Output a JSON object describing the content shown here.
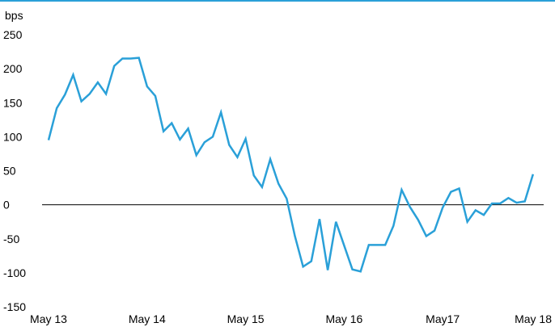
{
  "chart_data": {
    "type": "line",
    "title": "",
    "xlabel": "",
    "ylabel": "bps",
    "ylim": [
      -150,
      250
    ],
    "yticks": [
      250,
      200,
      150,
      100,
      50,
      0,
      -50,
      -100,
      -150
    ],
    "ytick_labels": [
      "250",
      "200",
      "150",
      "100",
      "50",
      "0",
      "-50",
      "-100",
      "-150"
    ],
    "xticks": [
      {
        "label": "May 13",
        "x": 0
      },
      {
        "label": "May 14",
        "x": 12
      },
      {
        "label": "May 15",
        "x": 24
      },
      {
        "label": "May 16",
        "x": 36
      },
      {
        "label": "May17",
        "x": 48
      },
      {
        "label": "May 18",
        "x": 60
      }
    ],
    "x_unit": "months since May 13",
    "grid": false,
    "zero_line": true,
    "colors": {
      "series": "#2aa0d8",
      "zero_line": "#000000",
      "top_rule": "#2aa0d8"
    },
    "series": [
      {
        "values": [
          95,
          142,
          162,
          191,
          152,
          163,
          180,
          163,
          204,
          215,
          215,
          216,
          174,
          160,
          108,
          120,
          96,
          112,
          73,
          92,
          100,
          136,
          88,
          70,
          97,
          43,
          26,
          67,
          31,
          9,
          -46,
          -91,
          -83,
          -21,
          -96,
          -25,
          -60,
          -95,
          -98,
          -59,
          -59,
          -59,
          -31,
          22,
          -3,
          -22,
          -46,
          -38,
          -4,
          19,
          24,
          -25,
          -8,
          -15,
          2,
          2,
          10,
          3,
          5,
          45
        ]
      }
    ]
  }
}
